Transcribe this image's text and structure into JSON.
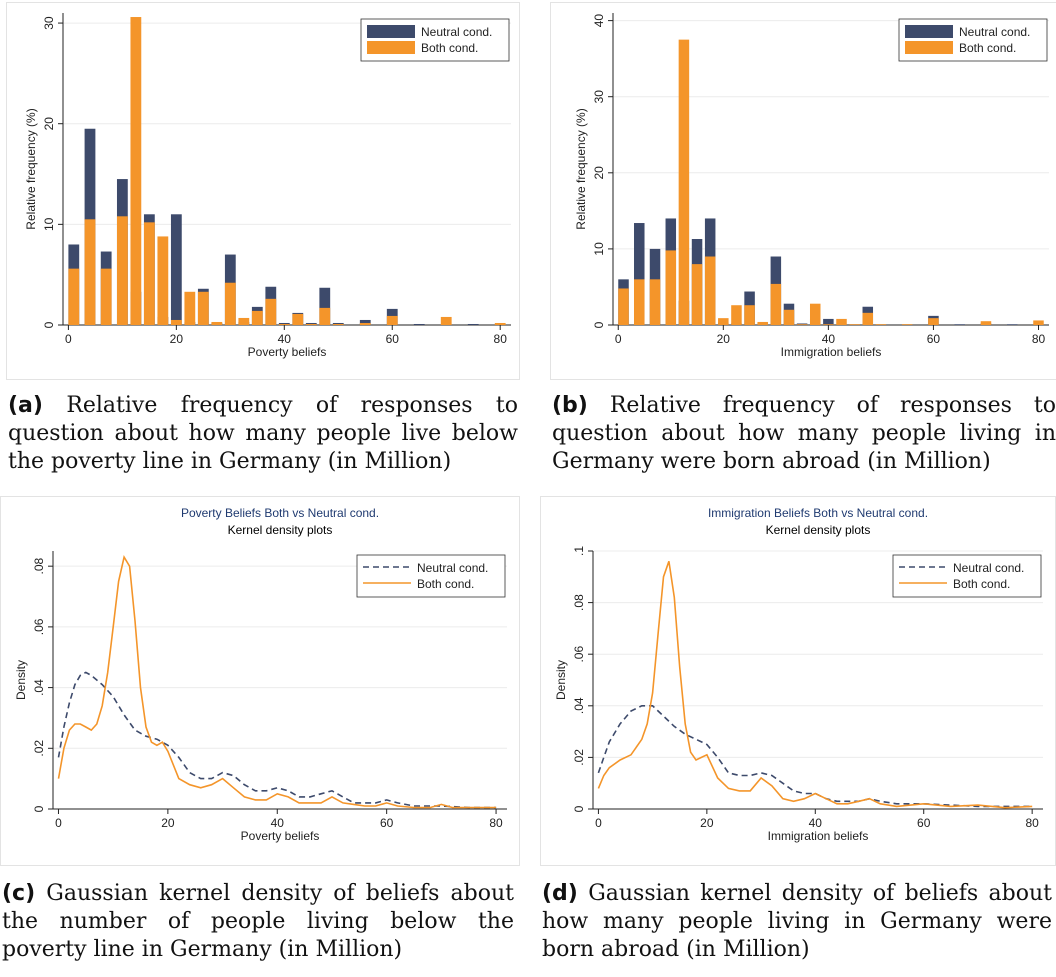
{
  "colors": {
    "neutral": "#3d4a6b",
    "both": "#f4952a",
    "grid": "#ececec",
    "axis": "#222222",
    "title": "#1f3a70"
  },
  "captions": {
    "a": {
      "tag": "(a)",
      "text": "Relative frequency of responses to question about how many people live below the poverty line in Germany (in Million)"
    },
    "b": {
      "tag": "(b)",
      "text": "Relative frequency of responses to question about how many people living in Germany were born abroad (in Million)"
    },
    "c": {
      "tag": "(c)",
      "text": "Gaussian kernel density of beliefs about the number of people living below the poverty line in Germany (in Million)"
    },
    "d": {
      "tag": "(d)",
      "text": "Gaussian kernel density of beliefs about how many people living in Germany were born abroad (in Million)"
    }
  },
  "chart_data": [
    {
      "id": "a",
      "type": "bar",
      "title": "",
      "xlabel": "Poverty beliefs",
      "ylabel": "Relative frequency (%)",
      "xlim": [
        -1,
        82
      ],
      "ylim": [
        0,
        31
      ],
      "xticks": [
        0,
        20,
        40,
        60,
        80
      ],
      "yticks": [
        0,
        10,
        20,
        30
      ],
      "bar_width": 2,
      "legend": {
        "position": "top-right",
        "entries": [
          "Neutral cond.",
          "Both cond."
        ]
      },
      "x": [
        1,
        4,
        7,
        10,
        12.5,
        15,
        17.5,
        20,
        22.5,
        25,
        27.5,
        30,
        32.5,
        35,
        37.5,
        40,
        42.5,
        45,
        47.5,
        50,
        55,
        60,
        65,
        70,
        75,
        80
      ],
      "series": [
        {
          "name": "Neutral cond.",
          "values": [
            8,
            19.5,
            7.3,
            14.5,
            3.3,
            11,
            0.8,
            11,
            0.3,
            3.6,
            0.2,
            7,
            0.3,
            1.8,
            3.8,
            0.2,
            1.2,
            0.2,
            3.7,
            0.2,
            0.5,
            1.6,
            0.1,
            0,
            0.1,
            0
          ]
        },
        {
          "name": "Both cond.",
          "values": [
            5.6,
            10.5,
            5.6,
            10.8,
            30.6,
            10.2,
            8.8,
            0.5,
            3.3,
            3.3,
            0.3,
            4.2,
            0.7,
            1.4,
            2.6,
            0.1,
            1.1,
            0.1,
            1.7,
            0.1,
            0.2,
            0.9,
            0,
            0.8,
            0,
            0.2
          ]
        }
      ]
    },
    {
      "id": "b",
      "type": "bar",
      "title": "",
      "xlabel": "Immigration beliefs",
      "ylabel": "Relative frequency (%)",
      "xlim": [
        -1,
        82
      ],
      "ylim": [
        0,
        41
      ],
      "xticks": [
        0,
        20,
        40,
        60,
        80
      ],
      "yticks": [
        0,
        10,
        20,
        30,
        40
      ],
      "bar_width": 2,
      "legend": {
        "position": "top-right",
        "entries": [
          "Neutral cond.",
          "Both cond."
        ]
      },
      "x": [
        1,
        4,
        7,
        10,
        12.5,
        15,
        17.5,
        20,
        22.5,
        25,
        27.5,
        30,
        32.5,
        35,
        37.5,
        40,
        42.5,
        45,
        47.5,
        50,
        55,
        60,
        65,
        70,
        75,
        80
      ],
      "series": [
        {
          "name": "Neutral cond.",
          "values": [
            6,
            13.4,
            10,
            14,
            3.2,
            11.3,
            14,
            0.3,
            0.2,
            4.4,
            0.2,
            9,
            2.8,
            0.2,
            0.8,
            0.8,
            0.1,
            0.1,
            2.4,
            0.1,
            0.1,
            1.2,
            0.1,
            0.2,
            0.1,
            0.1
          ]
        },
        {
          "name": "Both cond.",
          "values": [
            4.8,
            6,
            6,
            9.8,
            37.5,
            8,
            9,
            0.9,
            2.6,
            2.6,
            0.4,
            5.4,
            2,
            0.1,
            2.8,
            0.1,
            0.8,
            0.1,
            1.6,
            0.1,
            0.1,
            0.9,
            0,
            0.5,
            0,
            0.6
          ]
        }
      ]
    },
    {
      "id": "c",
      "type": "line",
      "title": "Poverty Beliefs Both vs Neutral cond.",
      "subtitle": "Kernel density plots",
      "xlabel": "Poverty beliefs",
      "ylabel": "Density",
      "xlim": [
        -1,
        82
      ],
      "ylim": [
        0,
        0.085
      ],
      "xticks": [
        0,
        20,
        40,
        60,
        80
      ],
      "yticks": [
        0,
        0.02,
        0.04,
        0.06,
        0.08
      ],
      "ytick_labels": [
        "0",
        ".02",
        ".04",
        ".06",
        ".08"
      ],
      "legend": {
        "position": "top-right",
        "entries": [
          "Neutral cond.",
          "Both cond."
        ]
      },
      "series": [
        {
          "name": "Neutral cond.",
          "style": "dashed",
          "x": [
            0,
            1,
            2,
            3,
            4,
            5,
            6,
            8,
            10,
            12,
            14,
            16,
            18,
            20,
            22,
            24,
            26,
            28,
            30,
            32,
            34,
            36,
            38,
            40,
            42,
            44,
            46,
            48,
            50,
            52,
            54,
            56,
            58,
            60,
            62,
            65,
            70,
            75,
            80
          ],
          "y": [
            0.017,
            0.027,
            0.035,
            0.041,
            0.044,
            0.045,
            0.044,
            0.041,
            0.037,
            0.031,
            0.026,
            0.024,
            0.023,
            0.021,
            0.017,
            0.012,
            0.01,
            0.01,
            0.012,
            0.011,
            0.008,
            0.006,
            0.006,
            0.007,
            0.006,
            0.004,
            0.004,
            0.005,
            0.006,
            0.004,
            0.002,
            0.002,
            0.002,
            0.003,
            0.002,
            0.001,
            0.001,
            0.0005,
            0.0005
          ]
        },
        {
          "name": "Both cond.",
          "style": "solid",
          "x": [
            0,
            1,
            2,
            3,
            4,
            5,
            6,
            7,
            8,
            9,
            10,
            11,
            12,
            13,
            14,
            15,
            16,
            17,
            18,
            19,
            20,
            22,
            24,
            26,
            28,
            30,
            32,
            34,
            36,
            38,
            40,
            42,
            44,
            46,
            48,
            50,
            52,
            54,
            56,
            58,
            60,
            62,
            65,
            68,
            70,
            72,
            75,
            80
          ],
          "y": [
            0.01,
            0.02,
            0.026,
            0.028,
            0.028,
            0.027,
            0.026,
            0.028,
            0.034,
            0.045,
            0.06,
            0.075,
            0.083,
            0.08,
            0.062,
            0.04,
            0.027,
            0.022,
            0.021,
            0.022,
            0.019,
            0.01,
            0.008,
            0.007,
            0.008,
            0.01,
            0.007,
            0.004,
            0.003,
            0.003,
            0.005,
            0.004,
            0.002,
            0.002,
            0.002,
            0.004,
            0.002,
            0.0015,
            0.001,
            0.001,
            0.002,
            0.001,
            0.0005,
            0.0005,
            0.0015,
            0.0005,
            0.0005,
            0.0005
          ]
        }
      ]
    },
    {
      "id": "d",
      "type": "line",
      "title": "Immigration Beliefs Both vs Neutral cond.",
      "subtitle": "Kernel density plots",
      "xlabel": "Immigration beliefs",
      "ylabel": "Density",
      "xlim": [
        -1,
        82
      ],
      "ylim": [
        0,
        0.1
      ],
      "xticks": [
        0,
        20,
        40,
        60,
        80
      ],
      "yticks": [
        0,
        0.02,
        0.04,
        0.06,
        0.08,
        0.1
      ],
      "ytick_labels": [
        "0",
        ".02",
        ".04",
        ".06",
        ".08",
        ".1"
      ],
      "legend": {
        "position": "top-right",
        "entries": [
          "Neutral cond.",
          "Both cond."
        ]
      },
      "series": [
        {
          "name": "Neutral cond.",
          "style": "dashed",
          "x": [
            0,
            1,
            2,
            4,
            6,
            8,
            10,
            12,
            14,
            16,
            18,
            20,
            22,
            24,
            26,
            28,
            30,
            32,
            34,
            36,
            38,
            40,
            42,
            44,
            46,
            48,
            50,
            52,
            55,
            60,
            65,
            70,
            75,
            80
          ],
          "y": [
            0.014,
            0.02,
            0.026,
            0.033,
            0.038,
            0.04,
            0.04,
            0.036,
            0.032,
            0.029,
            0.027,
            0.025,
            0.02,
            0.014,
            0.013,
            0.013,
            0.014,
            0.013,
            0.01,
            0.007,
            0.006,
            0.006,
            0.004,
            0.003,
            0.003,
            0.003,
            0.004,
            0.003,
            0.002,
            0.002,
            0.0015,
            0.001,
            0.001,
            0.001
          ]
        },
        {
          "name": "Both cond.",
          "style": "solid",
          "x": [
            0,
            1,
            2,
            4,
            6,
            8,
            9,
            10,
            11,
            12,
            13,
            14,
            15,
            16,
            17,
            18,
            19,
            20,
            22,
            24,
            26,
            28,
            30,
            32,
            34,
            36,
            38,
            40,
            42,
            44,
            46,
            48,
            50,
            52,
            55,
            60,
            65,
            70,
            75,
            80
          ],
          "y": [
            0.008,
            0.013,
            0.016,
            0.019,
            0.021,
            0.027,
            0.033,
            0.045,
            0.068,
            0.09,
            0.096,
            0.082,
            0.055,
            0.033,
            0.022,
            0.019,
            0.02,
            0.021,
            0.012,
            0.008,
            0.007,
            0.007,
            0.012,
            0.009,
            0.004,
            0.003,
            0.004,
            0.006,
            0.004,
            0.002,
            0.002,
            0.003,
            0.004,
            0.002,
            0.001,
            0.002,
            0.001,
            0.0015,
            0.0005,
            0.001
          ]
        }
      ]
    }
  ]
}
